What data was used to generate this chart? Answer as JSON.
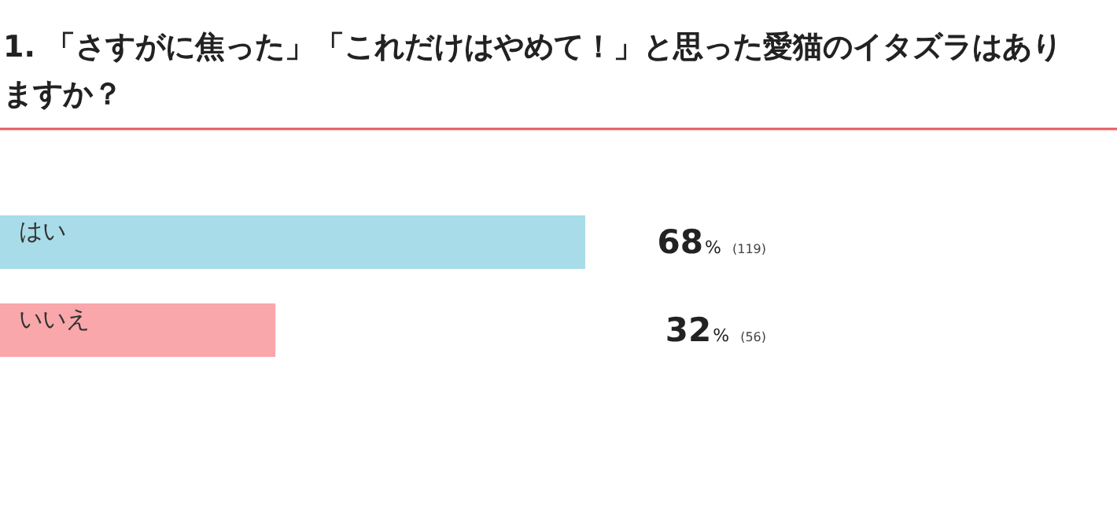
{
  "chart_data": {
    "type": "bar",
    "orientation": "horizontal",
    "title": "1. 「さすがに焦った」「これだけはやめて！」と思った愛猫のイタズラはありますか？",
    "categories": [
      "はい",
      "いいえ"
    ],
    "values": [
      68,
      32
    ],
    "colors": [
      "#a8dce8",
      "#f9a7aa"
    ],
    "value_labels": [
      "68% (119)",
      "32% (56)"
    ]
  }
}
